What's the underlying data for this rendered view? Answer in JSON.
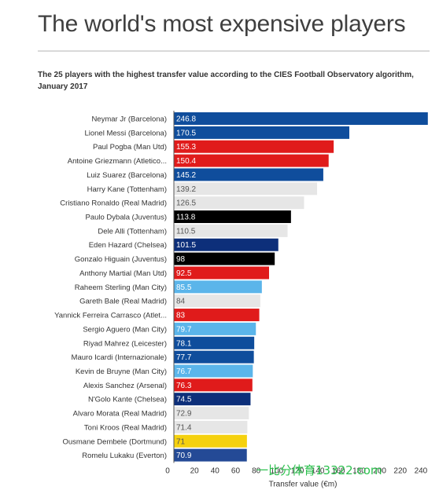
{
  "title": "The world's most expensive players",
  "subtitle": "The 25 players with the highest transfer value according to the CIES Football Observatory algorithm, January 2017",
  "watermark": "一比分体育13322.com",
  "chart_data": {
    "type": "bar",
    "orientation": "horizontal",
    "xlabel": "Transfer value (€m)",
    "xlim": [
      0,
      250
    ],
    "xticks": [
      "0",
      "20",
      "40",
      "60",
      "80",
      "100",
      "120",
      "140",
      "160",
      "180",
      "200",
      "220",
      "240"
    ],
    "grid": false,
    "categories": [
      "Neymar Jr (Barcelona)",
      "Lionel Messi (Barcelona)",
      "Paul Pogba (Man Utd)",
      "Antoine Griezmann (Atletico...",
      "Luiz Suarez (Barcelona)",
      "Harry Kane (Tottenham)",
      "Cristiano Ronaldo (Real Madrid)",
      "Paulo Dybala (Juventus)",
      "Dele Alli (Tottenham)",
      "Eden Hazard (Chelsea)",
      "Gonzalo Higuain (Juventus)",
      "Anthony Martial (Man Utd)",
      "Raheem Sterling (Man City)",
      "Gareth Bale (Real Madrid)",
      "Yannick Ferreira Carrasco (Atlet...",
      "Sergio Aguero (Man City)",
      "Riyad Mahrez (Leicester)",
      "Mauro Icardi (Internazionale)",
      "Kevin de Bruyne (Man City)",
      "Alexis Sanchez (Arsenal)",
      "N'Golo Kante (Chelsea)",
      "Alvaro Morata (Real Madrid)",
      "Toni Kroos (Real Madrid)",
      "Ousmane Dembele (Dortmund)",
      "Romelu Lukaku (Everton)"
    ],
    "values": [
      246.8,
      170.5,
      155.3,
      150.4,
      145.2,
      139.2,
      126.5,
      113.8,
      110.5,
      101.5,
      98,
      92.5,
      85.5,
      84,
      83,
      79.7,
      78.1,
      77.7,
      76.7,
      76.3,
      74.5,
      72.9,
      71.4,
      71,
      70.9
    ],
    "value_labels": [
      "246.8",
      "170.5",
      "155.3",
      "150.4",
      "145.2",
      "139.2",
      "126.5",
      "113.8",
      "110.5",
      "101.5",
      "98",
      "92.5",
      "85.5",
      "84",
      "83",
      "79.7",
      "78.1",
      "77.7",
      "76.7",
      "76.3",
      "74.5",
      "72.9",
      "71.4",
      "71",
      "70.9"
    ],
    "colors": [
      "#0f4d9c",
      "#0f4d9c",
      "#e01b1b",
      "#e01b1b",
      "#0f4d9c",
      "#e6e6e6",
      "#e6e6e6",
      "#000000",
      "#e6e6e6",
      "#0d2f7a",
      "#000000",
      "#e01b1b",
      "#5bb5ea",
      "#e6e6e6",
      "#e01b1b",
      "#5bb5ea",
      "#0f4d9c",
      "#0f4d9c",
      "#5bb5ea",
      "#e01b1b",
      "#0d2f7a",
      "#e6e6e6",
      "#e6e6e6",
      "#f5d10e",
      "#244a96"
    ],
    "label_colors": [
      "#ffffff",
      "#ffffff",
      "#ffffff",
      "#ffffff",
      "#ffffff",
      "#555555",
      "#555555",
      "#ffffff",
      "#555555",
      "#ffffff",
      "#ffffff",
      "#ffffff",
      "#ffffff",
      "#555555",
      "#ffffff",
      "#ffffff",
      "#ffffff",
      "#ffffff",
      "#ffffff",
      "#ffffff",
      "#ffffff",
      "#555555",
      "#555555",
      "#555555",
      "#ffffff"
    ]
  }
}
